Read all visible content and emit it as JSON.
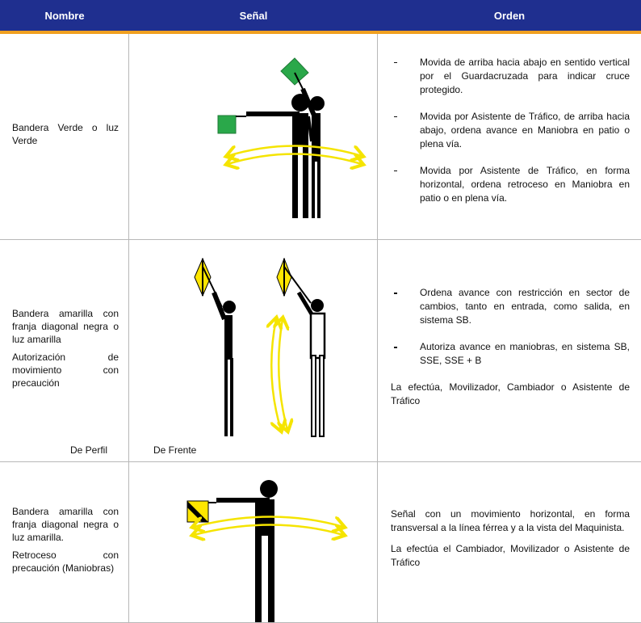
{
  "header": {
    "columns": [
      "Nombre",
      "Señal",
      "Orden"
    ]
  },
  "rows": [
    {
      "nombre": [
        "Bandera Verde o luz Verde"
      ],
      "captions": [],
      "orden": {
        "bullets": [
          "Movida de arriba hacia abajo en sentido vertical por el Guardacruzada para indicar cruce protegido.",
          "Movida por Asistente de Tráfico, de arriba hacia abajo, ordena avance en Maniobra en patio o plena vía.",
          "Movida por Asistente de Tráfico, en forma horizontal, ordena retroceso en Maniobra en patio o en plena vía."
        ],
        "paragraphs": []
      }
    },
    {
      "nombre": [
        "Bandera amarilla con franja diagonal negra o luz amarilla",
        "Autorización de movimiento con precaución"
      ],
      "captions": [
        "De Perfil",
        "De Frente"
      ],
      "orden": {
        "bullets": [
          "Ordena avance con restricción en sector de cambios, tanto en entrada, como salida, en sistema SB.",
          "Autoriza avance en maniobras, en sistema SB, SSE, SSE + B"
        ],
        "paragraphs": [
          "La efectúa, Movilizador, Cambiador o Asistente de Tráfico"
        ]
      }
    },
    {
      "nombre": [
        "Bandera amarilla con franja diagonal negra o luz amarilla.",
        "Retroceso con precaución (Maniobras)"
      ],
      "captions": [],
      "orden": {
        "bullets": [],
        "paragraphs": [
          "Señal con un movimiento horizontal, en forma transversal a la línea férrea y a la vista del Maquinista.",
          "La efectúa el Cambiador, Movilizador o Asistente de Tráfico"
        ]
      }
    }
  ]
}
